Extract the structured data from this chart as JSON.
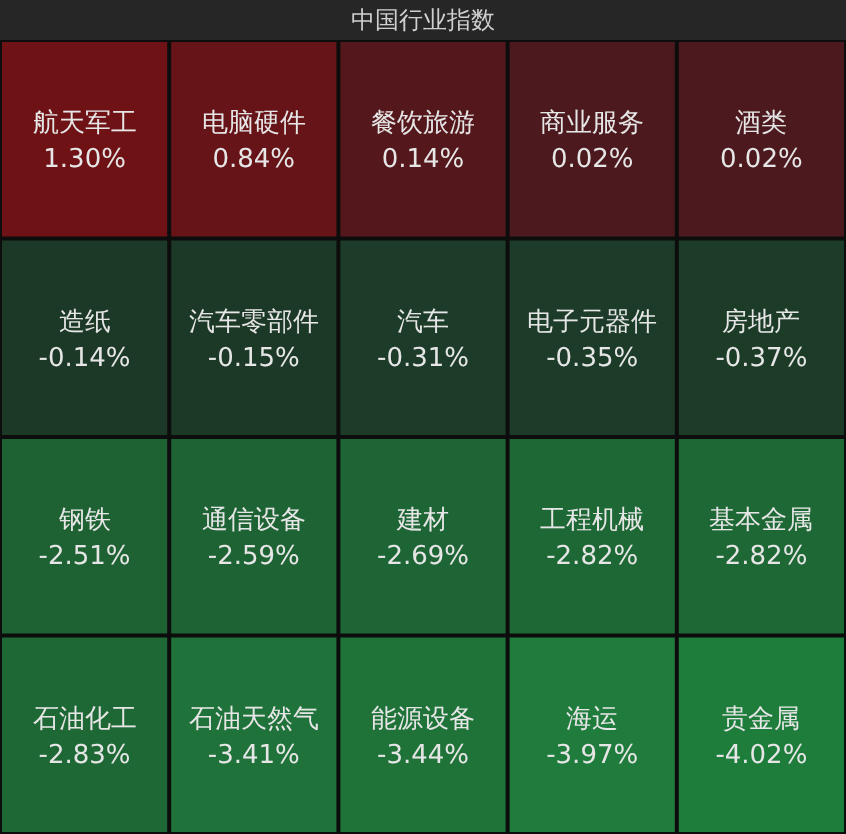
{
  "chart_data": {
    "type": "other",
    "title": "中国行业指数",
    "categories": [
      "航天军工",
      "电脑硬件",
      "餐饮旅游",
      "商业服务",
      "酒类",
      "造纸",
      "汽车零部件",
      "汽车",
      "电子元器件",
      "房地产",
      "钢铁",
      "通信设备",
      "建材",
      "工程机械",
      "基本金属",
      "石油化工",
      "石油天然气",
      "能源设备",
      "海运",
      "贵金属"
    ],
    "values": [
      1.3,
      0.84,
      0.14,
      0.02,
      0.02,
      -0.14,
      -0.15,
      -0.31,
      -0.35,
      -0.37,
      -2.51,
      -2.59,
      -2.69,
      -2.82,
      -2.82,
      -2.83,
      -3.41,
      -3.44,
      -3.97,
      -4.02
    ],
    "value_labels": [
      "1.30%",
      "0.84%",
      "0.14%",
      "0.02%",
      "0.02%",
      "-0.14%",
      "-0.15%",
      "-0.31%",
      "-0.35%",
      "-0.37%",
      "-2.51%",
      "-2.59%",
      "-2.69%",
      "-2.82%",
      "-2.82%",
      "-2.83%",
      "-3.41%",
      "-3.44%",
      "-3.97%",
      "-4.02%"
    ]
  }
}
